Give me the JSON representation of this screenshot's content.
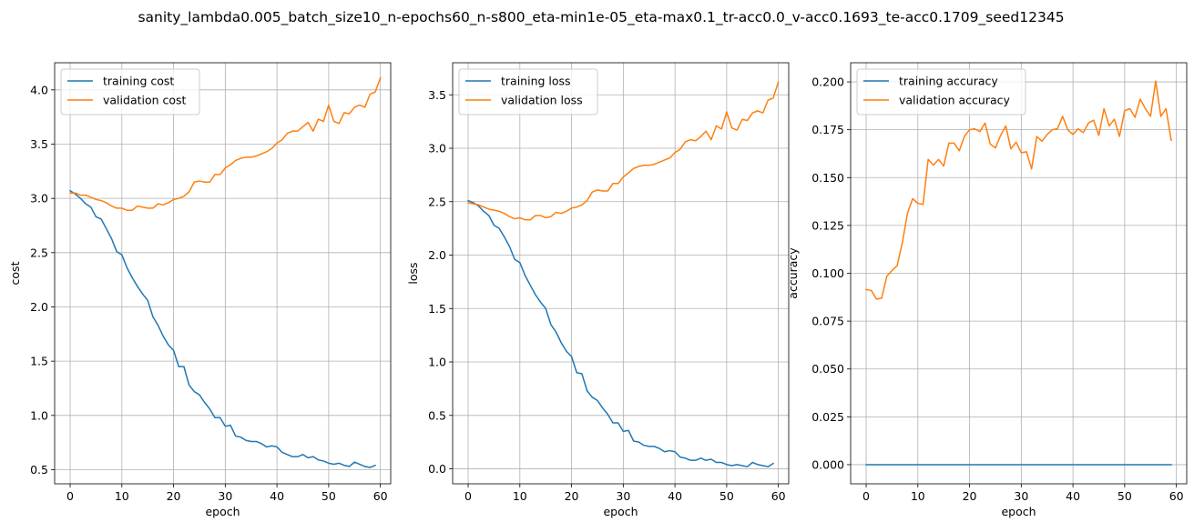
{
  "suptitle": "sanity_lambda0.005_batch_size10_n-epochs60_n-s800_eta-min1e-05_eta-max0.1_tr-acc0.0_v-acc0.1693_te-acc0.1709_seed12345",
  "colors": {
    "training": "#1f77b4",
    "validation": "#ff7f0e"
  },
  "chart_data": [
    {
      "type": "line",
      "title": "",
      "xlabel": "epoch",
      "ylabel": "cost",
      "xlim": [
        -3,
        62
      ],
      "ylim": [
        0.37,
        4.25
      ],
      "xticks": [
        0,
        10,
        20,
        30,
        40,
        50,
        60
      ],
      "yticks": [
        0.5,
        1.0,
        1.5,
        2.0,
        2.5,
        3.0,
        3.5,
        4.0
      ],
      "ytick_labels": [
        "0.5",
        "1.0",
        "1.5",
        "2.0",
        "2.5",
        "3.0",
        "3.5",
        "4.0"
      ],
      "grid": true,
      "legend": "upper-left",
      "series": [
        {
          "name": "training cost",
          "values": [
            3.07,
            3.04,
            3.0,
            2.95,
            2.92,
            2.83,
            2.81,
            2.72,
            2.63,
            2.51,
            2.48,
            2.36,
            2.27,
            2.19,
            2.12,
            2.06,
            1.91,
            1.83,
            1.73,
            1.65,
            1.6,
            1.45,
            1.45,
            1.28,
            1.22,
            1.19,
            1.12,
            1.06,
            0.98,
            0.98,
            0.9,
            0.91,
            0.81,
            0.8,
            0.77,
            0.76,
            0.76,
            0.74,
            0.71,
            0.72,
            0.71,
            0.66,
            0.64,
            0.62,
            0.62,
            0.64,
            0.61,
            0.62,
            0.59,
            0.58,
            0.56,
            0.55,
            0.56,
            0.54,
            0.53,
            0.57,
            0.55,
            0.53,
            0.52,
            0.54
          ]
        },
        {
          "name": "validation cost",
          "values": [
            3.05,
            3.05,
            3.03,
            3.03,
            3.01,
            2.99,
            2.98,
            2.96,
            2.93,
            2.91,
            2.91,
            2.89,
            2.89,
            2.93,
            2.92,
            2.91,
            2.91,
            2.95,
            2.94,
            2.96,
            2.99,
            3.0,
            3.02,
            3.06,
            3.15,
            3.16,
            3.15,
            3.15,
            3.22,
            3.22,
            3.28,
            3.31,
            3.35,
            3.37,
            3.38,
            3.38,
            3.39,
            3.41,
            3.43,
            3.46,
            3.51,
            3.54,
            3.6,
            3.62,
            3.62,
            3.66,
            3.7,
            3.62,
            3.73,
            3.71,
            3.86,
            3.71,
            3.69,
            3.79,
            3.78,
            3.84,
            3.86,
            3.84,
            3.96,
            3.98,
            4.11
          ]
        }
      ]
    },
    {
      "type": "line",
      "title": "",
      "xlabel": "epoch",
      "ylabel": "loss",
      "xlim": [
        -3,
        62
      ],
      "ylim": [
        -0.14,
        3.8
      ],
      "xticks": [
        0,
        10,
        20,
        30,
        40,
        50,
        60
      ],
      "yticks": [
        0.0,
        0.5,
        1.0,
        1.5,
        2.0,
        2.5,
        3.0,
        3.5
      ],
      "ytick_labels": [
        "0.0",
        "0.5",
        "1.0",
        "1.5",
        "2.0",
        "2.5",
        "3.0",
        "3.5"
      ],
      "grid": true,
      "legend": "upper-left",
      "series": [
        {
          "name": "training loss",
          "values": [
            2.51,
            2.49,
            2.46,
            2.41,
            2.37,
            2.28,
            2.25,
            2.17,
            2.08,
            1.96,
            1.93,
            1.81,
            1.72,
            1.63,
            1.56,
            1.5,
            1.35,
            1.28,
            1.18,
            1.1,
            1.05,
            0.9,
            0.89,
            0.73,
            0.67,
            0.64,
            0.57,
            0.51,
            0.43,
            0.43,
            0.35,
            0.36,
            0.26,
            0.25,
            0.22,
            0.21,
            0.21,
            0.19,
            0.16,
            0.17,
            0.16,
            0.11,
            0.1,
            0.08,
            0.08,
            0.1,
            0.08,
            0.09,
            0.06,
            0.06,
            0.04,
            0.03,
            0.04,
            0.03,
            0.02,
            0.06,
            0.04,
            0.03,
            0.02,
            0.05
          ]
        },
        {
          "name": "validation loss",
          "values": [
            2.49,
            2.48,
            2.47,
            2.45,
            2.43,
            2.42,
            2.41,
            2.39,
            2.36,
            2.34,
            2.35,
            2.33,
            2.33,
            2.37,
            2.37,
            2.35,
            2.36,
            2.4,
            2.39,
            2.41,
            2.44,
            2.45,
            2.47,
            2.51,
            2.59,
            2.61,
            2.6,
            2.6,
            2.67,
            2.67,
            2.73,
            2.77,
            2.81,
            2.83,
            2.84,
            2.84,
            2.85,
            2.87,
            2.89,
            2.91,
            2.96,
            2.99,
            3.06,
            3.08,
            3.07,
            3.11,
            3.16,
            3.08,
            3.21,
            3.18,
            3.34,
            3.19,
            3.17,
            3.27,
            3.26,
            3.33,
            3.35,
            3.33,
            3.45,
            3.47,
            3.62
          ]
        }
      ]
    },
    {
      "type": "line",
      "title": "",
      "xlabel": "epoch",
      "ylabel": "accuracy",
      "xlim": [
        -3,
        62
      ],
      "ylim": [
        -0.01,
        0.21
      ],
      "xticks": [
        0,
        10,
        20,
        30,
        40,
        50,
        60
      ],
      "yticks": [
        0.0,
        0.025,
        0.05,
        0.075,
        0.1,
        0.125,
        0.15,
        0.175,
        0.2
      ],
      "ytick_labels": [
        "0.000",
        "0.025",
        "0.050",
        "0.075",
        "0.100",
        "0.125",
        "0.150",
        "0.175",
        "0.200"
      ],
      "grid": true,
      "legend": "upper-left",
      "series": [
        {
          "name": "training accuracy",
          "values": [
            0.0,
            0.0,
            0.0,
            0.0,
            0.0,
            0.0,
            0.0,
            0.0,
            0.0,
            0.0,
            0.0,
            0.0,
            0.0,
            0.0,
            0.0,
            0.0,
            0.0,
            0.0,
            0.0,
            0.0,
            0.0,
            0.0,
            0.0,
            0.0,
            0.0,
            0.0,
            0.0,
            0.0,
            0.0,
            0.0,
            0.0,
            0.0,
            0.0,
            0.0,
            0.0,
            0.0,
            0.0,
            0.0,
            0.0,
            0.0,
            0.0,
            0.0,
            0.0,
            0.0,
            0.0,
            0.0,
            0.0,
            0.0,
            0.0,
            0.0,
            0.0,
            0.0,
            0.0,
            0.0,
            0.0,
            0.0,
            0.0,
            0.0,
            0.0,
            0.0
          ]
        },
        {
          "name": "validation accuracy",
          "values": [
            0.0915,
            0.091,
            0.0865,
            0.087,
            0.0985,
            0.1015,
            0.104,
            0.116,
            0.1315,
            0.139,
            0.1365,
            0.136,
            0.1595,
            0.1565,
            0.1595,
            0.156,
            0.168,
            0.168,
            0.164,
            0.1715,
            0.175,
            0.1755,
            0.174,
            0.1785,
            0.1675,
            0.1655,
            0.172,
            0.177,
            0.165,
            0.1685,
            0.163,
            0.1635,
            0.1545,
            0.1715,
            0.169,
            0.1725,
            0.175,
            0.1755,
            0.182,
            0.175,
            0.1725,
            0.1755,
            0.1735,
            0.1785,
            0.18,
            0.172,
            0.186,
            0.177,
            0.1805,
            0.1715,
            0.185,
            0.186,
            0.1815,
            0.191,
            0.186,
            0.182,
            0.2005,
            0.182,
            0.186,
            0.1695
          ]
        }
      ]
    }
  ]
}
